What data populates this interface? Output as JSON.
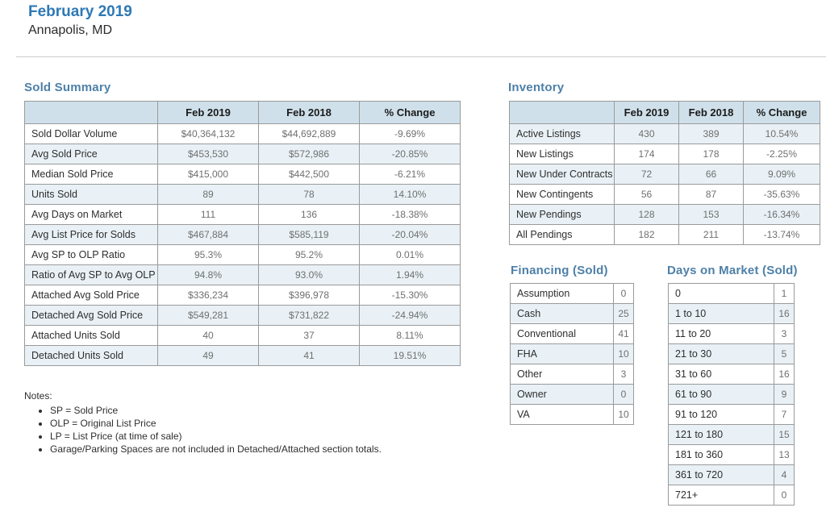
{
  "page": {
    "title": "February 2019",
    "subtitle": "Annapolis, MD"
  },
  "colors": {
    "title_blue": "#2e79b5",
    "section_heading_blue": "#4d80a8",
    "table_header_bg": "#cfe0ea",
    "alt_row_bg": "#e9f1f6",
    "border_gray": "#9a9a9a"
  },
  "sold_summary": {
    "heading": "Sold Summary",
    "columns": [
      "",
      "Feb 2019",
      "Feb 2018",
      "% Change"
    ],
    "rows": [
      {
        "label": "Sold Dollar Volume",
        "feb2019": "$40,364,132",
        "feb2018": "$44,692,889",
        "change": "-9.69%"
      },
      {
        "label": "Avg Sold Price",
        "feb2019": "$453,530",
        "feb2018": "$572,986",
        "change": "-20.85%"
      },
      {
        "label": "Median Sold Price",
        "feb2019": "$415,000",
        "feb2018": "$442,500",
        "change": "-6.21%"
      },
      {
        "label": "Units Sold",
        "feb2019": "89",
        "feb2018": "78",
        "change": "14.10%"
      },
      {
        "label": "Avg Days on Market",
        "feb2019": "111",
        "feb2018": "136",
        "change": "-18.38%"
      },
      {
        "label": "Avg List Price for Solds",
        "feb2019": "$467,884",
        "feb2018": "$585,119",
        "change": "-20.04%"
      },
      {
        "label": "Avg SP to OLP Ratio",
        "feb2019": "95.3%",
        "feb2018": "95.2%",
        "change": "0.01%"
      },
      {
        "label": "Ratio of Avg SP to Avg OLP",
        "feb2019": "94.8%",
        "feb2018": "93.0%",
        "change": "1.94%"
      },
      {
        "label": "Attached Avg Sold Price",
        "feb2019": "$336,234",
        "feb2018": "$396,978",
        "change": "-15.30%"
      },
      {
        "label": "Detached Avg Sold Price",
        "feb2019": "$549,281",
        "feb2018": "$731,822",
        "change": "-24.94%"
      },
      {
        "label": "Attached Units Sold",
        "feb2019": "40",
        "feb2018": "37",
        "change": "8.11%"
      },
      {
        "label": "Detached Units Sold",
        "feb2019": "49",
        "feb2018": "41",
        "change": "19.51%"
      }
    ]
  },
  "notes": {
    "heading": "Notes:",
    "items": [
      "SP = Sold Price",
      "OLP = Original List Price",
      "LP = List Price (at time of sale)",
      "Garage/Parking Spaces are not included in Detached/Attached section totals."
    ]
  },
  "inventory": {
    "heading": "Inventory",
    "columns": [
      "",
      "Feb 2019",
      "Feb 2018",
      "% Change"
    ],
    "rows": [
      {
        "label": "Active Listings",
        "feb2019": "430",
        "feb2018": "389",
        "change": "10.54%"
      },
      {
        "label": "New Listings",
        "feb2019": "174",
        "feb2018": "178",
        "change": "-2.25%"
      },
      {
        "label": "New Under Contracts",
        "feb2019": "72",
        "feb2018": "66",
        "change": "9.09%"
      },
      {
        "label": "New Contingents",
        "feb2019": "56",
        "feb2018": "87",
        "change": "-35.63%"
      },
      {
        "label": "New Pendings",
        "feb2019": "128",
        "feb2018": "153",
        "change": "-16.34%"
      },
      {
        "label": "All Pendings",
        "feb2019": "182",
        "feb2018": "211",
        "change": "-13.74%"
      }
    ]
  },
  "financing": {
    "heading": "Financing (Sold)",
    "rows": [
      {
        "label": "Assumption",
        "value": "0"
      },
      {
        "label": "Cash",
        "value": "25"
      },
      {
        "label": "Conventional",
        "value": "41"
      },
      {
        "label": "FHA",
        "value": "10"
      },
      {
        "label": "Other",
        "value": "3"
      },
      {
        "label": "Owner",
        "value": "0"
      },
      {
        "label": "VA",
        "value": "10"
      }
    ]
  },
  "days_on_market": {
    "heading": "Days on Market (Sold)",
    "rows": [
      {
        "label": "0",
        "value": "1"
      },
      {
        "label": "1 to 10",
        "value": "16"
      },
      {
        "label": "11 to 20",
        "value": "3"
      },
      {
        "label": "21 to 30",
        "value": "5"
      },
      {
        "label": "31 to 60",
        "value": "16"
      },
      {
        "label": "61 to 90",
        "value": "9"
      },
      {
        "label": "91 to 120",
        "value": "7"
      },
      {
        "label": "121 to 180",
        "value": "15"
      },
      {
        "label": "181 to 360",
        "value": "13"
      },
      {
        "label": "361 to 720",
        "value": "4"
      },
      {
        "label": "721+",
        "value": "0"
      }
    ]
  }
}
